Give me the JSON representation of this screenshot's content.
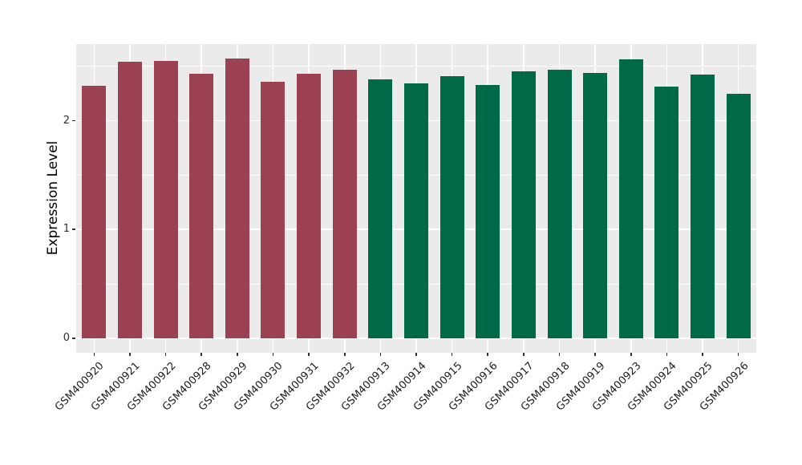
{
  "figure": {
    "background_color": "#FFFFFF",
    "panel_background_color": "#EBEBEB",
    "grid_color": "#FFFFFF",
    "tick_mark_color": "#333333",
    "tick_label_color": "#2E2E2E",
    "axis_title_color": "#000000"
  },
  "chart_data": {
    "type": "bar",
    "title": "",
    "xlabel": "",
    "ylabel": "Expression Level",
    "ylim": [
      0,
      2.7
    ],
    "yticks": [
      0,
      1,
      2
    ],
    "yticks_minor": [
      0.5,
      1.5,
      2.5
    ],
    "grid": "on",
    "legend": "none",
    "bar_groups": [
      {
        "color": "#9B4151",
        "bars": [
          {
            "label": "GSM400920",
            "value": 2.32
          },
          {
            "label": "GSM400921",
            "value": 2.54
          },
          {
            "label": "GSM400922",
            "value": 2.55
          },
          {
            "label": "GSM400928",
            "value": 2.43
          },
          {
            "label": "GSM400929",
            "value": 2.57
          },
          {
            "label": "GSM400930",
            "value": 2.36
          },
          {
            "label": "GSM400931",
            "value": 2.43
          },
          {
            "label": "GSM400932",
            "value": 2.47
          }
        ]
      },
      {
        "color": "#006A48",
        "bars": [
          {
            "label": "GSM400913",
            "value": 2.38
          },
          {
            "label": "GSM400914",
            "value": 2.34
          },
          {
            "label": "GSM400915",
            "value": 2.41
          },
          {
            "label": "GSM400916",
            "value": 2.33
          },
          {
            "label": "GSM400917",
            "value": 2.45
          },
          {
            "label": "GSM400918",
            "value": 2.47
          },
          {
            "label": "GSM400919",
            "value": 2.44
          },
          {
            "label": "GSM400923",
            "value": 2.56
          },
          {
            "label": "GSM400924",
            "value": 2.31
          },
          {
            "label": "GSM400925",
            "value": 2.42
          },
          {
            "label": "GSM400926",
            "value": 2.25
          }
        ]
      }
    ]
  }
}
